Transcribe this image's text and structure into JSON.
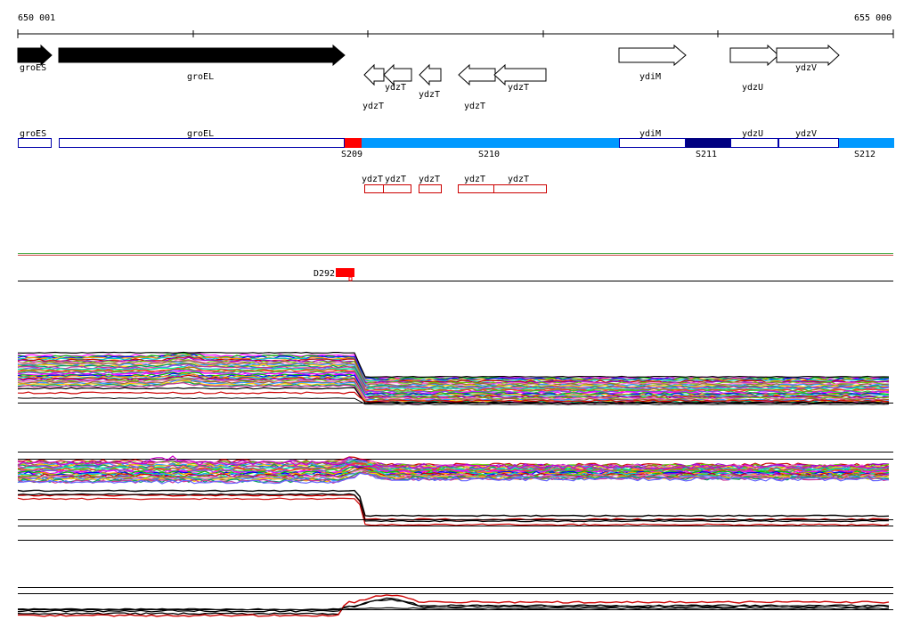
{
  "coordinates": {
    "start": "650 001",
    "end": "655 000"
  },
  "colors": {
    "forward_gene_fill": "#000000",
    "reverse_gene_fill": "#ffffff",
    "region_outline_blue": "#0000aa",
    "region_outline_red": "#cc0000",
    "segment_red": "#ff0000",
    "segment_light_blue": "#0099ff",
    "segment_dark_blue": "#000080"
  },
  "genes_forward": [
    {
      "label": "groES"
    },
    {
      "label": "groEL"
    },
    {
      "label": "ydiM"
    },
    {
      "label": "ydzU"
    },
    {
      "label": "ydzV"
    }
  ],
  "genes_reverse": [
    {
      "label": "ydzT"
    },
    {
      "label": "ydzT"
    },
    {
      "label": "ydzT"
    },
    {
      "label": "ydzT"
    },
    {
      "label": "ydzT"
    }
  ],
  "regions_blue": [
    {
      "label": "groES"
    },
    {
      "label": "groEL"
    },
    {
      "label": "ydiM"
    },
    {
      "label": "ydzU"
    },
    {
      "label": "ydzV"
    }
  ],
  "segments": [
    {
      "label": "S209"
    },
    {
      "label": "S210"
    },
    {
      "label": "S211"
    },
    {
      "label": "S212"
    }
  ],
  "regions_red": [
    {
      "label": "ydzT"
    },
    {
      "label": "ydzT"
    },
    {
      "label": "ydzT"
    },
    {
      "label": "ydzT"
    },
    {
      "label": "ydzT"
    }
  ],
  "feature_marker": {
    "label": "D292"
  }
}
